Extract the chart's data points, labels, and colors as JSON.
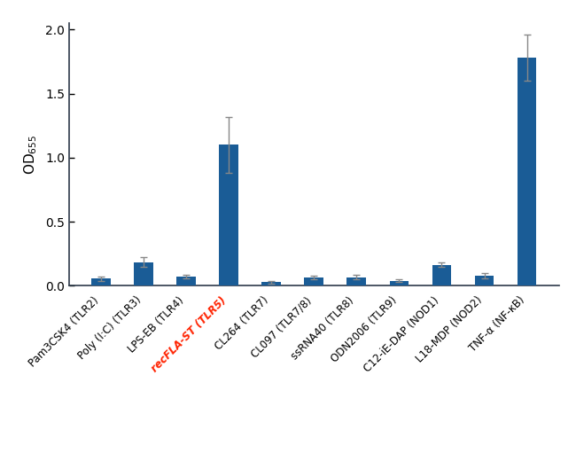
{
  "categories": [
    "Pam3CSK4 (TLR2)",
    "Poly (I:C) (TLR3)",
    "LPS-EB (TLR4)",
    "recFLA-ST (TLR5)",
    "CL264 (TLR7)",
    "CL097 (TLR7/8)",
    "ssRNA40 (TLR8)",
    "ODN2006 (TLR9)",
    "C12-iE-DAP (NOD1)",
    "L18-MDP (NOD2)",
    "TNF-α (NF-κB)"
  ],
  "values": [
    0.055,
    0.185,
    0.07,
    1.1,
    0.03,
    0.065,
    0.068,
    0.04,
    0.165,
    0.08,
    1.78
  ],
  "errors": [
    0.015,
    0.04,
    0.015,
    0.22,
    0.01,
    0.015,
    0.018,
    0.01,
    0.02,
    0.02,
    0.18
  ],
  "bar_color": "#1a5c96",
  "highlight_index": 3,
  "highlight_label_color": "#FF2200",
  "ylim": [
    0,
    2.05
  ],
  "yticks": [
    0,
    0.5,
    1.0,
    1.5,
    2.0
  ],
  "background_color": "#FFFFFF",
  "bar_width": 0.45,
  "error_capsize": 3,
  "error_color": "#888888",
  "error_linewidth": 1.0,
  "spine_color": "#2d3a4a",
  "tick_label_fontsize": 8.5,
  "ylabel_fontsize": 11
}
